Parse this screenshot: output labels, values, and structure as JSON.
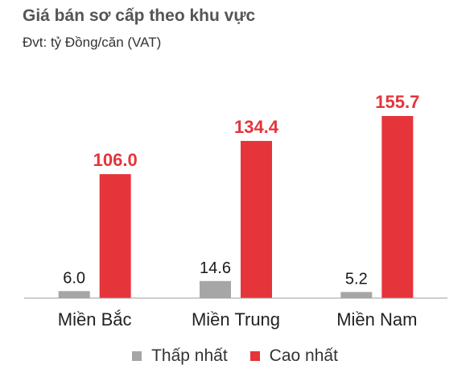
{
  "title": "Giá bán sơ cấp theo khu vực",
  "subtitle": "Đvt: tỷ Đồng/căn (VAT)",
  "colors": {
    "low": "#a6a6a6",
    "high": "#e5343a",
    "low_label": "#1a1a1a",
    "high_label": "#e5343a",
    "axis": "#9e9e9e"
  },
  "chart_data": {
    "type": "bar",
    "title": "Giá bán sơ cấp theo khu vực",
    "subtitle": "Đvt: tỷ Đồng/căn (VAT)",
    "categories": [
      "Miền Bắc",
      "Miền Trung",
      "Miền Nam"
    ],
    "series": [
      {
        "name": "Thấp nhất",
        "values": [
          6.0,
          14.6,
          5.2
        ]
      },
      {
        "name": "Cao nhất",
        "values": [
          106.0,
          134.4,
          155.7
        ]
      }
    ],
    "value_labels": [
      [
        "6.0",
        "14.6",
        "5.2"
      ],
      [
        "106.0",
        "134.4",
        "155.7"
      ]
    ],
    "xlabel": "",
    "ylabel": "",
    "ylim": [
      0,
      155.7
    ],
    "grid": false,
    "legend": "bottom"
  }
}
